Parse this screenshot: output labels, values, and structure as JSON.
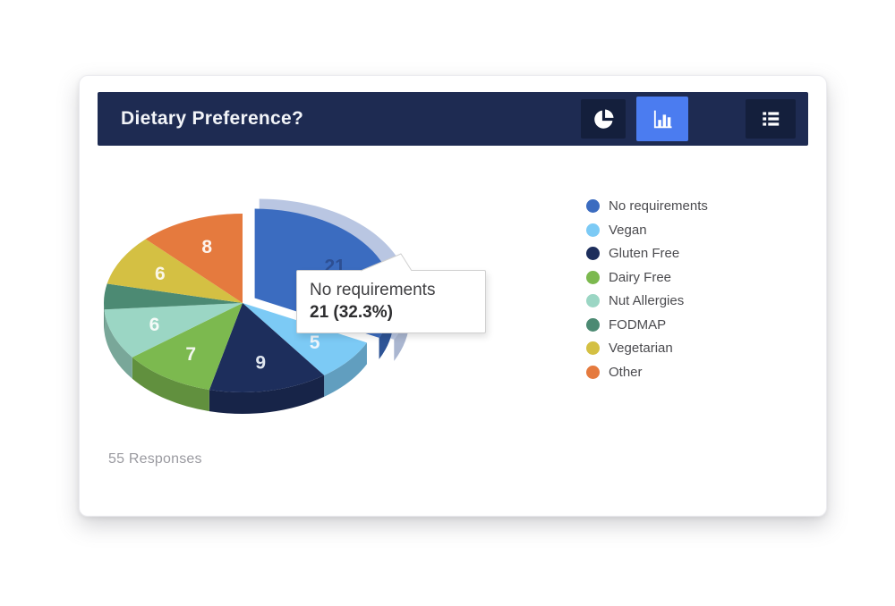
{
  "card": {
    "header": {
      "title": "Dietary Preference?",
      "buttons": [
        {
          "name": "pie-chart-view",
          "icon": "pie-chart-icon",
          "active": false
        },
        {
          "name": "bar-chart-view",
          "icon": "bar-chart-icon",
          "active": true
        },
        {
          "name": "list-view",
          "icon": "list-icon",
          "active": false
        }
      ],
      "colors": {
        "bar_bg": "#1e2b52",
        "button_bg": "#141f3c",
        "button_active_bg": "#4b7cf0"
      }
    },
    "footer": {
      "responses_label": "55 Responses"
    }
  },
  "tooltip": {
    "title": "No requirements",
    "value_text": "21 (32.3%)"
  },
  "chart_data": {
    "type": "pie",
    "style": "3d-pie, first slice exploded with light halo",
    "title": "Dietary Preference?",
    "legend_position": "right",
    "total_responses": 55,
    "categories": [
      "No requirements",
      "Vegan",
      "Gluten Free",
      "Dairy Free",
      "Nut Allergies",
      "FODMAP",
      "Vegetarian",
      "Other"
    ],
    "values": [
      21,
      5,
      9,
      7,
      6,
      3,
      6,
      8
    ],
    "slice_labels": [
      "21",
      "5",
      "9",
      "7",
      "6",
      "",
      "6",
      "8"
    ],
    "colors": [
      "#3b6cc0",
      "#7ccaf5",
      "#1d2e5c",
      "#7cb94f",
      "#9bd6c4",
      "#4c8a73",
      "#d4c043",
      "#e57a3e"
    ],
    "slice_label_colors": [
      "#2d4f93",
      "#eef5fb",
      "#dfe6ef",
      "#f2f7ee",
      "#f5fbf8",
      "",
      "#faf7e8",
      "#fdf3ec"
    ],
    "halo_color": "#b9c6e2",
    "exploded_slice": "No requirements",
    "highlighted": {
      "category": "No requirements",
      "value": 21,
      "percent": "32.3%"
    }
  }
}
